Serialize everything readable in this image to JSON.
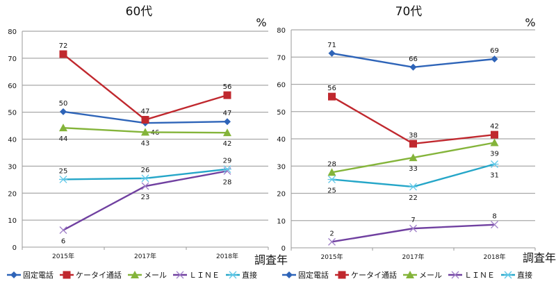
{
  "colors": {
    "固定電話": "#2e64b8",
    "ケータイ通話": "#c0282e",
    "メール": "#84b43a",
    "ＬＩＮＥ": "#7040a0",
    "直接": "#25a6c8"
  },
  "markers": [
    "diamond",
    "square",
    "triangle",
    "x",
    "star"
  ],
  "chart_data": [
    {
      "type": "line",
      "title": "60代",
      "ylabel": "%",
      "xlabel": "調査年",
      "categories": [
        "2015年",
        "2017年",
        "2018年"
      ],
      "ylim": [
        0,
        80
      ],
      "yticks": [
        0,
        10,
        20,
        30,
        40,
        50,
        60,
        70,
        80
      ],
      "grid": true,
      "legend": "bottom",
      "series": [
        {
          "name": "固定電話",
          "values": [
            50,
            46,
            47
          ],
          "plot": [
            50.2,
            46,
            46.5
          ]
        },
        {
          "name": "ケータイ通話",
          "values": [
            72,
            47,
            56
          ],
          "plot": [
            71.5,
            47.2,
            56.3
          ]
        },
        {
          "name": "メール",
          "values": [
            44,
            43,
            42
          ],
          "plot": [
            44.2,
            42.6,
            42.4
          ]
        },
        {
          "name": "ＬＩＮＥ",
          "values": [
            6,
            23,
            28
          ],
          "plot": [
            6.3,
            22.6,
            28.2
          ]
        },
        {
          "name": "直接",
          "values": [
            25,
            26,
            29
          ],
          "plot": [
            25.1,
            25.5,
            28.9
          ]
        }
      ]
    },
    {
      "type": "line",
      "title": "70代",
      "ylabel": "%",
      "xlabel": "調査年",
      "categories": [
        "2015年",
        "2017年",
        "2018年"
      ],
      "ylim": [
        0,
        80
      ],
      "yticks": [
        0,
        10,
        20,
        30,
        40,
        50,
        60,
        70,
        80
      ],
      "grid": true,
      "legend": "bottom",
      "series": [
        {
          "name": "固定電話",
          "values": [
            71,
            66,
            69
          ],
          "plot": [
            71.4,
            66.3,
            69.3
          ]
        },
        {
          "name": "ケータイ通話",
          "values": [
            56,
            38,
            42
          ],
          "plot": [
            55.5,
            38.2,
            41.5
          ]
        },
        {
          "name": "メール",
          "values": [
            28,
            33,
            39
          ],
          "plot": [
            27.7,
            33.1,
            38.6
          ]
        },
        {
          "name": "ＬＩＮＥ",
          "values": [
            2,
            7,
            8
          ],
          "plot": [
            2.2,
            7.1,
            8.5
          ]
        },
        {
          "name": "直接",
          "values": [
            25,
            22,
            31
          ],
          "plot": [
            25.1,
            22.4,
            30.7
          ]
        }
      ]
    }
  ]
}
